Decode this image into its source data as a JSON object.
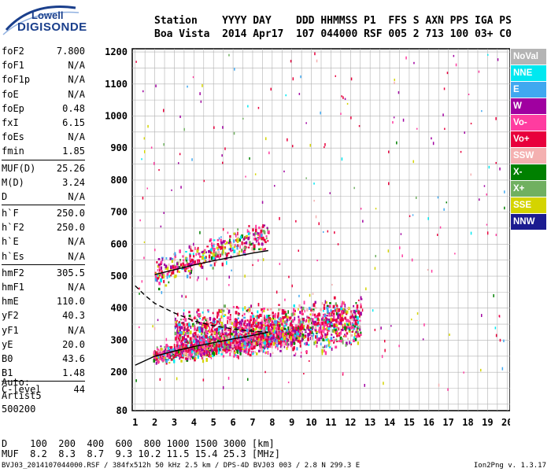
{
  "logo": {
    "line1": "Lowell",
    "line2": "DIGISONDE"
  },
  "header": {
    "line1": "Station    YYYY DAY    DDD HHMMSS P1  FFS S AXN PPS IGA PS",
    "line2": "Boa Vista  2014 Apr17  107 044000 RSF 005 2 713 100 03+ C0"
  },
  "params": [
    [
      {
        "label": "foF2",
        "value": "7.800"
      },
      {
        "label": "foF1",
        "value": "N/A"
      },
      {
        "label": "foF1p",
        "value": "N/A"
      },
      {
        "label": "foE",
        "value": "N/A"
      },
      {
        "label": "foEp",
        "value": "0.48"
      },
      {
        "label": "fxI",
        "value": "6.15"
      },
      {
        "label": "foEs",
        "value": "N/A"
      },
      {
        "label": "fmin",
        "value": "1.85"
      }
    ],
    [
      {
        "label": "MUF(D)",
        "value": "25.26"
      },
      {
        "label": "M(D)",
        "value": "3.24"
      },
      {
        "label": "D",
        "value": "N/A"
      }
    ],
    [
      {
        "label": "h`F",
        "value": "250.0"
      },
      {
        "label": "h`F2",
        "value": "250.0"
      },
      {
        "label": "h`E",
        "value": "N/A"
      },
      {
        "label": "h`Es",
        "value": "N/A"
      }
    ],
    [
      {
        "label": "hmF2",
        "value": "305.5"
      },
      {
        "label": "hmF1",
        "value": "N/A"
      },
      {
        "label": "hmE",
        "value": "110.0"
      },
      {
        "label": "yF2",
        "value": "40.3"
      },
      {
        "label": "yF1",
        "value": "N/A"
      },
      {
        "label": "yE",
        "value": "20.0"
      },
      {
        "label": "B0",
        "value": "43.6"
      },
      {
        "label": "B1",
        "value": "1.48"
      }
    ],
    [
      {
        "label": "C-level",
        "value": "44"
      }
    ]
  ],
  "auto": {
    "line1": "Auto:",
    "line2": "Artist5",
    "line3": "500200"
  },
  "dmuf": {
    "d_line": "D    100  200  400  600  800 1000 1500 3000 [km]",
    "muf_line": "MUF  8.2  8.3  8.7  9.3 10.2 11.5 15.4 25.3 [MHz]"
  },
  "footer": {
    "left": "BVJ03_2014107044000.RSF / 384fx512h 50 kHz 2.5 km / DPS-4D BVJ03 003 / 2.8 N 299.3 E",
    "right": "Ion2Png v. 1.3.17"
  },
  "legend": [
    {
      "label": "NoVal",
      "color": "#b4b4b4"
    },
    {
      "label": "NNE",
      "color": "#00e8f0"
    },
    {
      "label": "E",
      "color": "#40a8f0"
    },
    {
      "label": "W",
      "color": "#a000a0"
    },
    {
      "label": "Vo-",
      "color": "#ff3ca0"
    },
    {
      "label": "Vo+",
      "color": "#e8003c"
    },
    {
      "label": "SSW",
      "color": "#f4b0b0"
    },
    {
      "label": "X-",
      "color": "#008000"
    },
    {
      "label": "X+",
      "color": "#70b060"
    },
    {
      "label": "SSE",
      "color": "#d4d400"
    },
    {
      "label": "NNW",
      "color": "#1c1c90"
    }
  ],
  "chart_data": {
    "type": "scatter",
    "xlabel": "",
    "ylabel": "",
    "xlim": [
      0.85,
      20.15
    ],
    "ylim": [
      80,
      1210
    ],
    "x_ticks": [
      1,
      2,
      3,
      4,
      5,
      6,
      7,
      8,
      9,
      10,
      11,
      12,
      13,
      14,
      15,
      16,
      17,
      18,
      19,
      20
    ],
    "y_ticks": [
      80,
      200,
      300,
      400,
      500,
      600,
      700,
      800,
      900,
      1000,
      1100,
      1200
    ],
    "grid": true,
    "legend_placement": "right",
    "series": [
      {
        "name": "NoVal",
        "color": "#b4b4b4"
      },
      {
        "name": "NNE",
        "color": "#00e8f0"
      },
      {
        "name": "E",
        "color": "#40a8f0"
      },
      {
        "name": "W",
        "color": "#a000a0"
      },
      {
        "name": "Vo-",
        "color": "#ff3ca0"
      },
      {
        "name": "Vo+",
        "color": "#e8003c"
      },
      {
        "name": "SSW",
        "color": "#f4b0b0"
      },
      {
        "name": "X-",
        "color": "#008000"
      },
      {
        "name": "X+",
        "color": "#70b060"
      },
      {
        "name": "SSE",
        "color": "#d4d400"
      },
      {
        "name": "NNW",
        "color": "#1c1c90"
      }
    ],
    "echo_clusters": [
      {
        "f_start": 1.9,
        "f_end": 9.5,
        "h_start": 255,
        "h_end": 325,
        "spread": 25,
        "density": 1200
      },
      {
        "f_start": 3.0,
        "f_end": 12.5,
        "h_start": 320,
        "h_end": 360,
        "spread": 70,
        "density": 1500
      },
      {
        "f_start": 2.0,
        "f_end": 7.8,
        "h_start": 510,
        "h_end": 640,
        "spread": 40,
        "density": 400
      }
    ],
    "profile_curve": {
      "x": [
        1.0,
        2.0,
        3.0,
        4.0,
        5.0,
        6.0,
        7.0,
        7.8
      ],
      "y": [
        222,
        250,
        266,
        280,
        292,
        304,
        315,
        325
      ]
    },
    "profile_curve_2": {
      "x": [
        2.0,
        3.0,
        4.0,
        5.0,
        6.0,
        7.0,
        7.8
      ],
      "y": [
        505,
        520,
        535,
        548,
        560,
        572,
        580
      ]
    },
    "extrapolated_curve": {
      "x": [
        1.0,
        1.5,
        2.0,
        3.0,
        4.0,
        5.0,
        6.0,
        7.0,
        7.8
      ],
      "y": [
        470,
        440,
        415,
        385,
        360,
        345,
        335,
        328,
        325
      ]
    }
  }
}
